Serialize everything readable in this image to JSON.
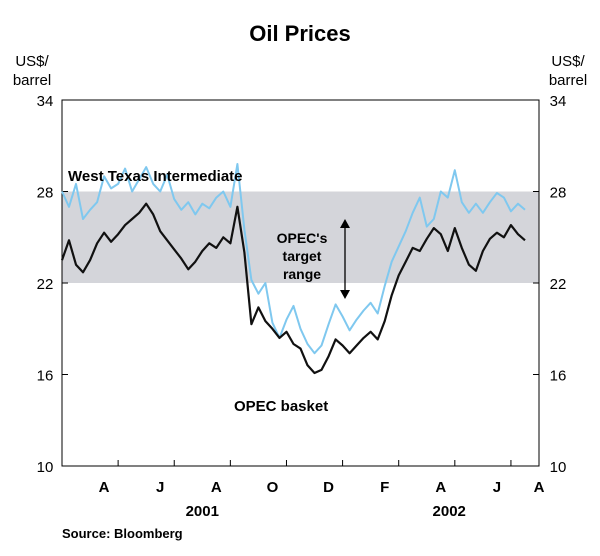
{
  "chart_data": {
    "type": "line",
    "title": "Oil Prices",
    "ylabel_left": [
      "US$/",
      "barrel"
    ],
    "ylabel_right": [
      "US$/",
      "barrel"
    ],
    "ylim": [
      10,
      34
    ],
    "yticks": [
      10,
      16,
      22,
      28,
      34
    ],
    "xlim": [
      0,
      17
    ],
    "x_unit": "months since start of Feb 2001",
    "x_tick_positions": [
      2,
      4,
      6,
      8,
      10,
      12,
      14,
      16
    ],
    "month_labels": [
      {
        "label": "A",
        "x": 1.5
      },
      {
        "label": "J",
        "x": 3.5
      },
      {
        "label": "A",
        "x": 5.5
      },
      {
        "label": "O",
        "x": 7.5
      },
      {
        "label": "D",
        "x": 9.5
      },
      {
        "label": "F",
        "x": 11.5
      },
      {
        "label": "A",
        "x": 13.5
      },
      {
        "label": "J",
        "x": 15.5
      },
      {
        "label": "A",
        "x": 17.0
      }
    ],
    "year_labels": [
      {
        "label": "2001",
        "x": 5.0
      },
      {
        "label": "2002",
        "x": 13.8
      }
    ],
    "target_range": {
      "low": 22,
      "high": 28,
      "label": [
        "OPEC's",
        "target",
        "range"
      ]
    },
    "series": [
      {
        "name": "West Texas Intermediate",
        "color": "#7fc8ef",
        "x": [
          0.0,
          0.25,
          0.5,
          0.75,
          1.0,
          1.25,
          1.5,
          1.75,
          2.0,
          2.25,
          2.5,
          2.75,
          3.0,
          3.25,
          3.5,
          3.75,
          4.0,
          4.25,
          4.5,
          4.75,
          5.0,
          5.25,
          5.5,
          5.75,
          6.0,
          6.25,
          6.5,
          6.75,
          7.0,
          7.25,
          7.5,
          7.75,
          8.0,
          8.25,
          8.5,
          8.75,
          9.0,
          9.25,
          9.5,
          9.75,
          10.0,
          10.25,
          10.5,
          10.75,
          11.0,
          11.25,
          11.5,
          11.75,
          12.0,
          12.25,
          12.5,
          12.75,
          13.0,
          13.25,
          13.5,
          13.75,
          14.0,
          14.25,
          14.5,
          14.75,
          15.0,
          15.25,
          15.5,
          15.75,
          16.0,
          16.25,
          16.5
        ],
        "values": [
          28.0,
          27.0,
          28.5,
          26.2,
          26.8,
          27.3,
          29.0,
          28.2,
          28.5,
          29.5,
          28.0,
          28.8,
          29.6,
          28.5,
          28.0,
          29.1,
          27.5,
          26.8,
          27.3,
          26.5,
          27.2,
          26.9,
          27.6,
          28.0,
          27.0,
          29.8,
          25.5,
          22.2,
          21.3,
          22.0,
          19.4,
          18.4,
          19.6,
          20.5,
          19.0,
          18.0,
          17.4,
          17.9,
          19.3,
          20.6,
          19.8,
          18.9,
          19.6,
          20.2,
          20.7,
          20.0,
          21.8,
          23.4,
          24.4,
          25.4,
          26.6,
          27.6,
          25.7,
          26.2,
          28.0,
          27.6,
          29.4,
          27.3,
          26.6,
          27.2,
          26.6,
          27.3,
          27.9,
          27.6,
          26.7,
          27.2,
          26.8
        ]
      },
      {
        "name": "OPEC basket",
        "color": "#111111",
        "x": [
          0.0,
          0.25,
          0.5,
          0.75,
          1.0,
          1.25,
          1.5,
          1.75,
          2.0,
          2.25,
          2.5,
          2.75,
          3.0,
          3.25,
          3.5,
          3.75,
          4.0,
          4.25,
          4.5,
          4.75,
          5.0,
          5.25,
          5.5,
          5.75,
          6.0,
          6.25,
          6.5,
          6.75,
          7.0,
          7.25,
          7.5,
          7.75,
          8.0,
          8.25,
          8.5,
          8.75,
          9.0,
          9.25,
          9.5,
          9.75,
          10.0,
          10.25,
          10.5,
          10.75,
          11.0,
          11.25,
          11.5,
          11.75,
          12.0,
          12.25,
          12.5,
          12.75,
          13.0,
          13.25,
          13.5,
          13.75,
          14.0,
          14.25,
          14.5,
          14.75,
          15.0,
          15.25,
          15.5,
          15.75,
          16.0,
          16.25,
          16.5
        ],
        "values": [
          23.5,
          24.8,
          23.2,
          22.7,
          23.5,
          24.6,
          25.3,
          24.7,
          25.2,
          25.8,
          26.2,
          26.6,
          27.2,
          26.5,
          25.4,
          24.8,
          24.2,
          23.6,
          22.9,
          23.4,
          24.1,
          24.6,
          24.3,
          25.0,
          24.6,
          27.0,
          24.0,
          19.3,
          20.4,
          19.5,
          19.0,
          18.4,
          18.8,
          18.0,
          17.7,
          16.6,
          16.1,
          16.3,
          17.2,
          18.3,
          17.9,
          17.4,
          17.9,
          18.4,
          18.8,
          18.3,
          19.5,
          21.2,
          22.5,
          23.4,
          24.3,
          24.1,
          24.9,
          25.6,
          25.2,
          24.1,
          25.6,
          24.3,
          23.2,
          22.8,
          24.1,
          24.9,
          25.3,
          25.0,
          25.8,
          25.2,
          24.8
        ]
      }
    ],
    "annotations": [
      {
        "text": "West Texas Intermediate",
        "x": 0.2,
        "y": 30.2
      },
      {
        "text": "OPEC basket",
        "x": 8.15,
        "y": 14.0
      }
    ],
    "source": "Source: Bloomberg"
  }
}
